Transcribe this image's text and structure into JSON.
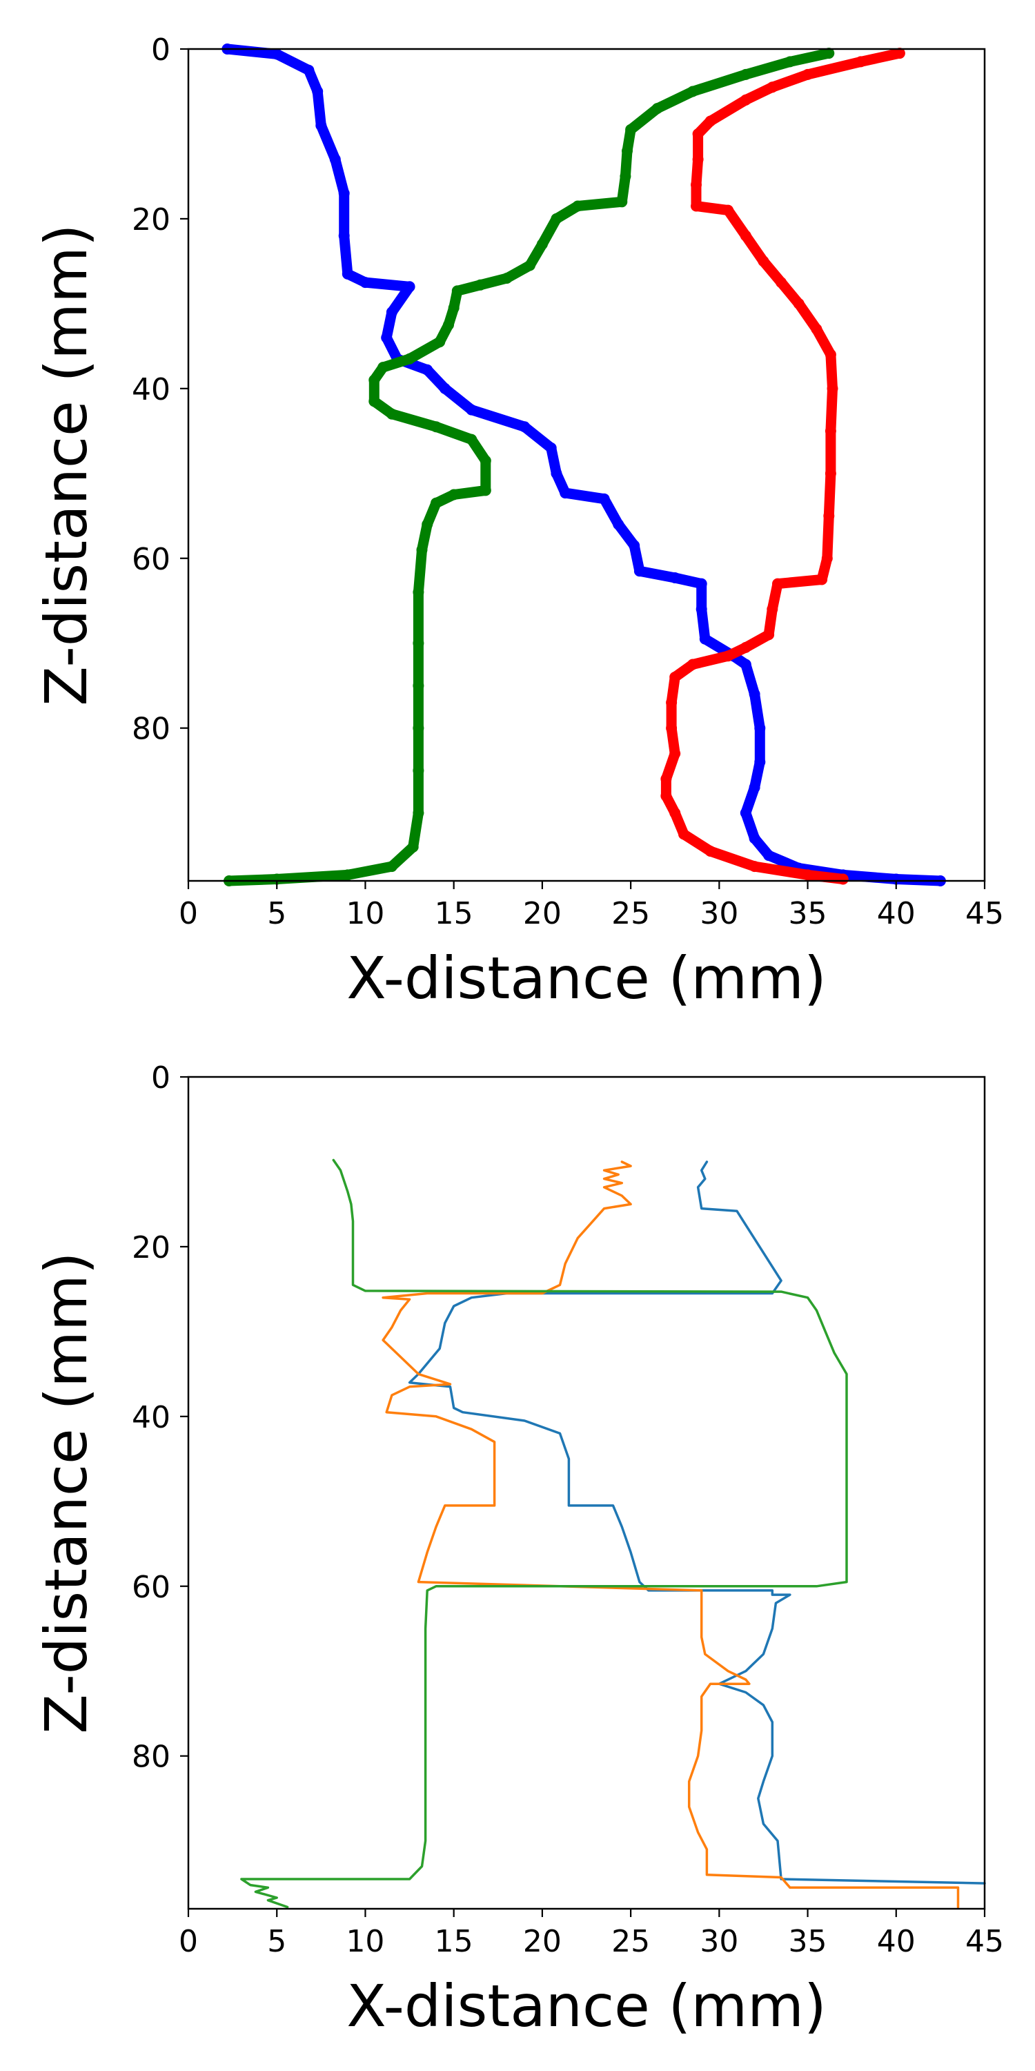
{
  "chart_data": [
    {
      "type": "scatter",
      "xlabel": "X-distance (mm)",
      "ylabel": "Z-distance (mm)",
      "xlim": [
        0,
        45
      ],
      "ylim": [
        98,
        0
      ],
      "x_ticks": [
        0,
        5,
        10,
        15,
        20,
        25,
        30,
        35,
        40,
        45
      ],
      "y_ticks": [
        0,
        20,
        40,
        60,
        80
      ],
      "grid": false,
      "series": [
        {
          "color": "#0000ff",
          "points": [
            [
              2.2,
              0
            ],
            [
              5,
              0.6
            ],
            [
              6.8,
              2.5
            ],
            [
              7.3,
              5
            ],
            [
              7.5,
              9
            ],
            [
              8.3,
              13
            ],
            [
              8.8,
              17
            ],
            [
              8.8,
              22
            ],
            [
              9,
              26.5
            ],
            [
              10,
              27.5
            ],
            [
              12.5,
              28
            ],
            [
              11.5,
              31
            ],
            [
              11.2,
              34
            ],
            [
              11.8,
              36.5
            ],
            [
              13.5,
              37.8
            ],
            [
              14.5,
              40
            ],
            [
              16,
              42.5
            ],
            [
              19,
              44.5
            ],
            [
              20.5,
              47
            ],
            [
              20.8,
              50
            ],
            [
              21.3,
              52.3
            ],
            [
              23.5,
              53
            ],
            [
              24.3,
              56
            ],
            [
              25.2,
              58.5
            ],
            [
              25.5,
              61.5
            ],
            [
              27.5,
              62.3
            ],
            [
              29,
              63
            ],
            [
              29,
              66
            ],
            [
              29.2,
              69.5
            ],
            [
              30.8,
              71.5
            ],
            [
              31.5,
              72.5
            ],
            [
              32,
              76
            ],
            [
              32.3,
              80
            ],
            [
              32.3,
              84
            ],
            [
              32,
              87
            ],
            [
              31.5,
              90
            ],
            [
              32,
              93
            ],
            [
              32.8,
              95
            ],
            [
              34.5,
              96.5
            ],
            [
              37,
              97.3
            ],
            [
              40,
              97.8
            ],
            [
              42.5,
              98
            ]
          ]
        },
        {
          "color": "#008000",
          "points": [
            [
              36.2,
              0.5
            ],
            [
              34,
              1.5
            ],
            [
              31.5,
              3
            ],
            [
              28.5,
              5
            ],
            [
              26.5,
              7
            ],
            [
              25,
              9.5
            ],
            [
              24.8,
              12
            ],
            [
              24.7,
              15
            ],
            [
              24.5,
              18
            ],
            [
              22,
              18.5
            ],
            [
              20.8,
              20
            ],
            [
              20,
              23
            ],
            [
              19.3,
              25.5
            ],
            [
              18,
              27
            ],
            [
              16.5,
              27.8
            ],
            [
              15.2,
              28.5
            ],
            [
              15,
              30.5
            ],
            [
              14.7,
              32.5
            ],
            [
              14.2,
              34.5
            ],
            [
              12.5,
              36.5
            ],
            [
              11,
              37.5
            ],
            [
              10.5,
              39
            ],
            [
              10.5,
              41.5
            ],
            [
              11.5,
              43
            ],
            [
              14,
              44.5
            ],
            [
              16,
              46
            ],
            [
              16.8,
              48.5
            ],
            [
              16.8,
              52
            ],
            [
              15,
              52.5
            ],
            [
              14,
              53.5
            ],
            [
              13.5,
              56
            ],
            [
              13.2,
              59
            ],
            [
              13,
              64
            ],
            [
              13,
              70
            ],
            [
              13,
              75
            ],
            [
              13,
              80
            ],
            [
              13,
              85
            ],
            [
              13,
              90
            ],
            [
              12.7,
              94
            ],
            [
              11.5,
              96.3
            ],
            [
              9,
              97.3
            ],
            [
              5,
              97.8
            ],
            [
              2.3,
              98
            ]
          ]
        },
        {
          "color": "#ff0000",
          "points": [
            [
              40.2,
              0.5
            ],
            [
              38,
              1.5
            ],
            [
              35,
              3
            ],
            [
              33,
              4.5
            ],
            [
              31.5,
              6
            ],
            [
              29.5,
              8.5
            ],
            [
              28.8,
              10
            ],
            [
              28.8,
              13
            ],
            [
              28.7,
              16
            ],
            [
              28.7,
              18.5
            ],
            [
              30.5,
              19
            ],
            [
              31.5,
              22
            ],
            [
              32.5,
              25
            ],
            [
              33.5,
              27.5
            ],
            [
              34.5,
              30
            ],
            [
              35.5,
              33
            ],
            [
              36.3,
              36
            ],
            [
              36.4,
              40
            ],
            [
              36.3,
              45
            ],
            [
              36.3,
              50
            ],
            [
              36.2,
              55
            ],
            [
              36.1,
              60
            ],
            [
              35.8,
              62.5
            ],
            [
              33.3,
              63
            ],
            [
              33,
              66
            ],
            [
              32.8,
              69
            ],
            [
              31.5,
              70.5
            ],
            [
              30.5,
              71.5
            ],
            [
              28.5,
              72.5
            ],
            [
              27.5,
              74
            ],
            [
              27.3,
              77
            ],
            [
              27.3,
              80
            ],
            [
              27.5,
              83
            ],
            [
              27,
              86
            ],
            [
              27,
              88
            ],
            [
              27.5,
              90
            ],
            [
              28,
              92.5
            ],
            [
              29.5,
              94.5
            ],
            [
              32,
              96.3
            ],
            [
              35,
              97.3
            ],
            [
              37,
              97.8
            ]
          ]
        }
      ]
    },
    {
      "type": "line",
      "xlabel": "X-distance (mm)",
      "ylabel": "Z-distance (mm)",
      "xlim": [
        0,
        45
      ],
      "ylim": [
        98,
        0
      ],
      "x_ticks": [
        0,
        5,
        10,
        15,
        20,
        25,
        30,
        35,
        40,
        45
      ],
      "y_ticks": [
        0,
        20,
        40,
        60,
        80
      ],
      "grid": false,
      "series": [
        {
          "color": "#1f77b4",
          "points": [
            [
              29.3,
              10
            ],
            [
              29,
              11
            ],
            [
              29.2,
              12
            ],
            [
              28.8,
              13
            ],
            [
              29,
              15.5
            ],
            [
              31,
              15.8
            ],
            [
              33.5,
              24
            ],
            [
              33,
              25.5
            ],
            [
              18,
              25.5
            ],
            [
              16,
              26
            ],
            [
              15,
              27
            ],
            [
              14.5,
              29
            ],
            [
              14.2,
              32
            ],
            [
              13,
              35
            ],
            [
              12.5,
              36
            ],
            [
              14.8,
              36.5
            ],
            [
              15,
              39
            ],
            [
              15.5,
              39.5
            ],
            [
              19,
              40.5
            ],
            [
              21,
              42
            ],
            [
              21.5,
              45
            ],
            [
              21.5,
              50.5
            ],
            [
              24,
              50.5
            ],
            [
              24.5,
              53
            ],
            [
              25,
              56
            ],
            [
              25.5,
              59.5
            ],
            [
              26,
              60.5
            ],
            [
              33,
              60.5
            ],
            [
              33,
              61
            ],
            [
              34,
              61
            ],
            [
              33.2,
              62
            ],
            [
              33,
              65
            ],
            [
              32.5,
              68
            ],
            [
              31.5,
              70
            ],
            [
              30,
              71.5
            ],
            [
              31.5,
              72.5
            ],
            [
              32.5,
              74
            ],
            [
              33,
              76
            ],
            [
              33,
              80
            ],
            [
              32.5,
              83
            ],
            [
              32.2,
              85
            ],
            [
              32.5,
              88
            ],
            [
              33.3,
              90
            ],
            [
              33.5,
              94.5
            ],
            [
              45,
              95
            ]
          ]
        },
        {
          "color": "#ff7f0e",
          "points": [
            [
              24.5,
              10
            ],
            [
              25,
              10.5
            ],
            [
              23.5,
              11
            ],
            [
              24.3,
              11.5
            ],
            [
              23.5,
              12
            ],
            [
              24.5,
              12.5
            ],
            [
              23.5,
              13
            ],
            [
              24.5,
              14
            ],
            [
              25,
              15
            ],
            [
              23.5,
              15.5
            ],
            [
              22,
              19
            ],
            [
              21.3,
              22
            ],
            [
              21,
              24.5
            ],
            [
              20,
              25.5
            ],
            [
              13.5,
              25.5
            ],
            [
              11,
              26
            ],
            [
              12.5,
              26.2
            ],
            [
              12,
              27.5
            ],
            [
              11.5,
              29.5
            ],
            [
              11,
              31
            ],
            [
              12,
              33
            ],
            [
              13,
              35
            ],
            [
              14.8,
              36.2
            ],
            [
              12.5,
              36.5
            ],
            [
              11.5,
              37.5
            ],
            [
              11.2,
              39.5
            ],
            [
              14,
              40
            ],
            [
              16,
              41.5
            ],
            [
              17.3,
              43
            ],
            [
              17.3,
              45
            ],
            [
              17.3,
              50.5
            ],
            [
              14.5,
              50.5
            ],
            [
              14,
              53
            ],
            [
              13.5,
              56
            ],
            [
              13,
              59.5
            ],
            [
              29,
              60.5
            ],
            [
              29,
              63
            ],
            [
              29,
              66
            ],
            [
              29.2,
              68
            ],
            [
              30.5,
              70
            ],
            [
              31.5,
              71
            ],
            [
              31.7,
              71.5
            ],
            [
              29.5,
              71.5
            ],
            [
              29,
              73
            ],
            [
              29,
              77
            ],
            [
              28.8,
              80
            ],
            [
              28.3,
              83
            ],
            [
              28.3,
              86
            ],
            [
              28.8,
              89
            ],
            [
              29.3,
              91
            ],
            [
              29.3,
              94
            ],
            [
              33.5,
              94.3
            ],
            [
              34,
              95.5
            ],
            [
              43.5,
              95.5
            ],
            [
              43.5,
              97.8
            ]
          ]
        },
        {
          "color": "#2ca02c",
          "points": [
            [
              8.2,
              9.8
            ],
            [
              8.6,
              11
            ],
            [
              9,
              13.5
            ],
            [
              9.2,
              15
            ],
            [
              9.3,
              17
            ],
            [
              9.3,
              20
            ],
            [
              9.3,
              23
            ],
            [
              9.3,
              24.5
            ],
            [
              10,
              25.2
            ],
            [
              33.5,
              25.3
            ],
            [
              35,
              26
            ],
            [
              35.5,
              27.5
            ],
            [
              36,
              30
            ],
            [
              36.5,
              32.5
            ],
            [
              37.2,
              35
            ],
            [
              37.2,
              40
            ],
            [
              37.2,
              50
            ],
            [
              37.2,
              55
            ],
            [
              37.2,
              59.5
            ],
            [
              35.5,
              60
            ],
            [
              14,
              60
            ],
            [
              13.5,
              60.5
            ],
            [
              13.4,
              65
            ],
            [
              13.4,
              70
            ],
            [
              13.4,
              75
            ],
            [
              13.4,
              80
            ],
            [
              13.4,
              85
            ],
            [
              13.4,
              90
            ],
            [
              13.2,
              93
            ],
            [
              12.5,
              94.5
            ],
            [
              3,
              94.5
            ],
            [
              3.5,
              95.2
            ],
            [
              4.5,
              95.5
            ],
            [
              3.8,
              96
            ],
            [
              5,
              96.7
            ],
            [
              4.5,
              97
            ],
            [
              5.6,
              97.8
            ]
          ]
        }
      ]
    }
  ]
}
